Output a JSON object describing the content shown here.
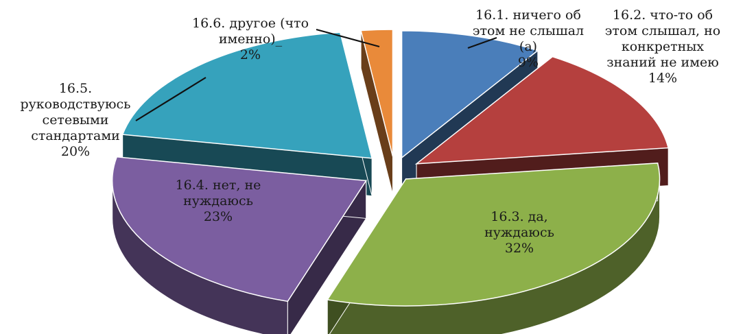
{
  "chart_data": {
    "type": "pie",
    "title": "",
    "three_d": true,
    "exploded": true,
    "unit": "%",
    "slices": [
      {
        "label_lines": [
          "16.1. ничего об",
          "этом не слышал",
          "(а)"
        ],
        "value": 9,
        "value_label": "9%",
        "color": "#4a7eba"
      },
      {
        "label_lines": [
          "16.2. что-то об",
          "этом слышал, но",
          "конкретных",
          "знаний не имею"
        ],
        "value": 14,
        "value_label": "14%",
        "color": "#b5403e"
      },
      {
        "label_lines": [
          "16.3. да,",
          "нуждаюсь"
        ],
        "value": 32,
        "value_label": "32%",
        "color": "#8db04a"
      },
      {
        "label_lines": [
          "16.4. нет, не",
          "нуждаюсь"
        ],
        "value": 23,
        "value_label": "23%",
        "color": "#7b5ea0"
      },
      {
        "label_lines": [
          "16.5.",
          "руководствуюсь",
          "сетевыми",
          "стандартами"
        ],
        "value": 20,
        "value_label": "20%",
        "color": "#36a2bc"
      },
      {
        "label_lines": [
          "16.6. другое (что",
          "именно)_"
        ],
        "value": 2,
        "value_label": "2%",
        "color": "#e98a3a"
      }
    ]
  }
}
